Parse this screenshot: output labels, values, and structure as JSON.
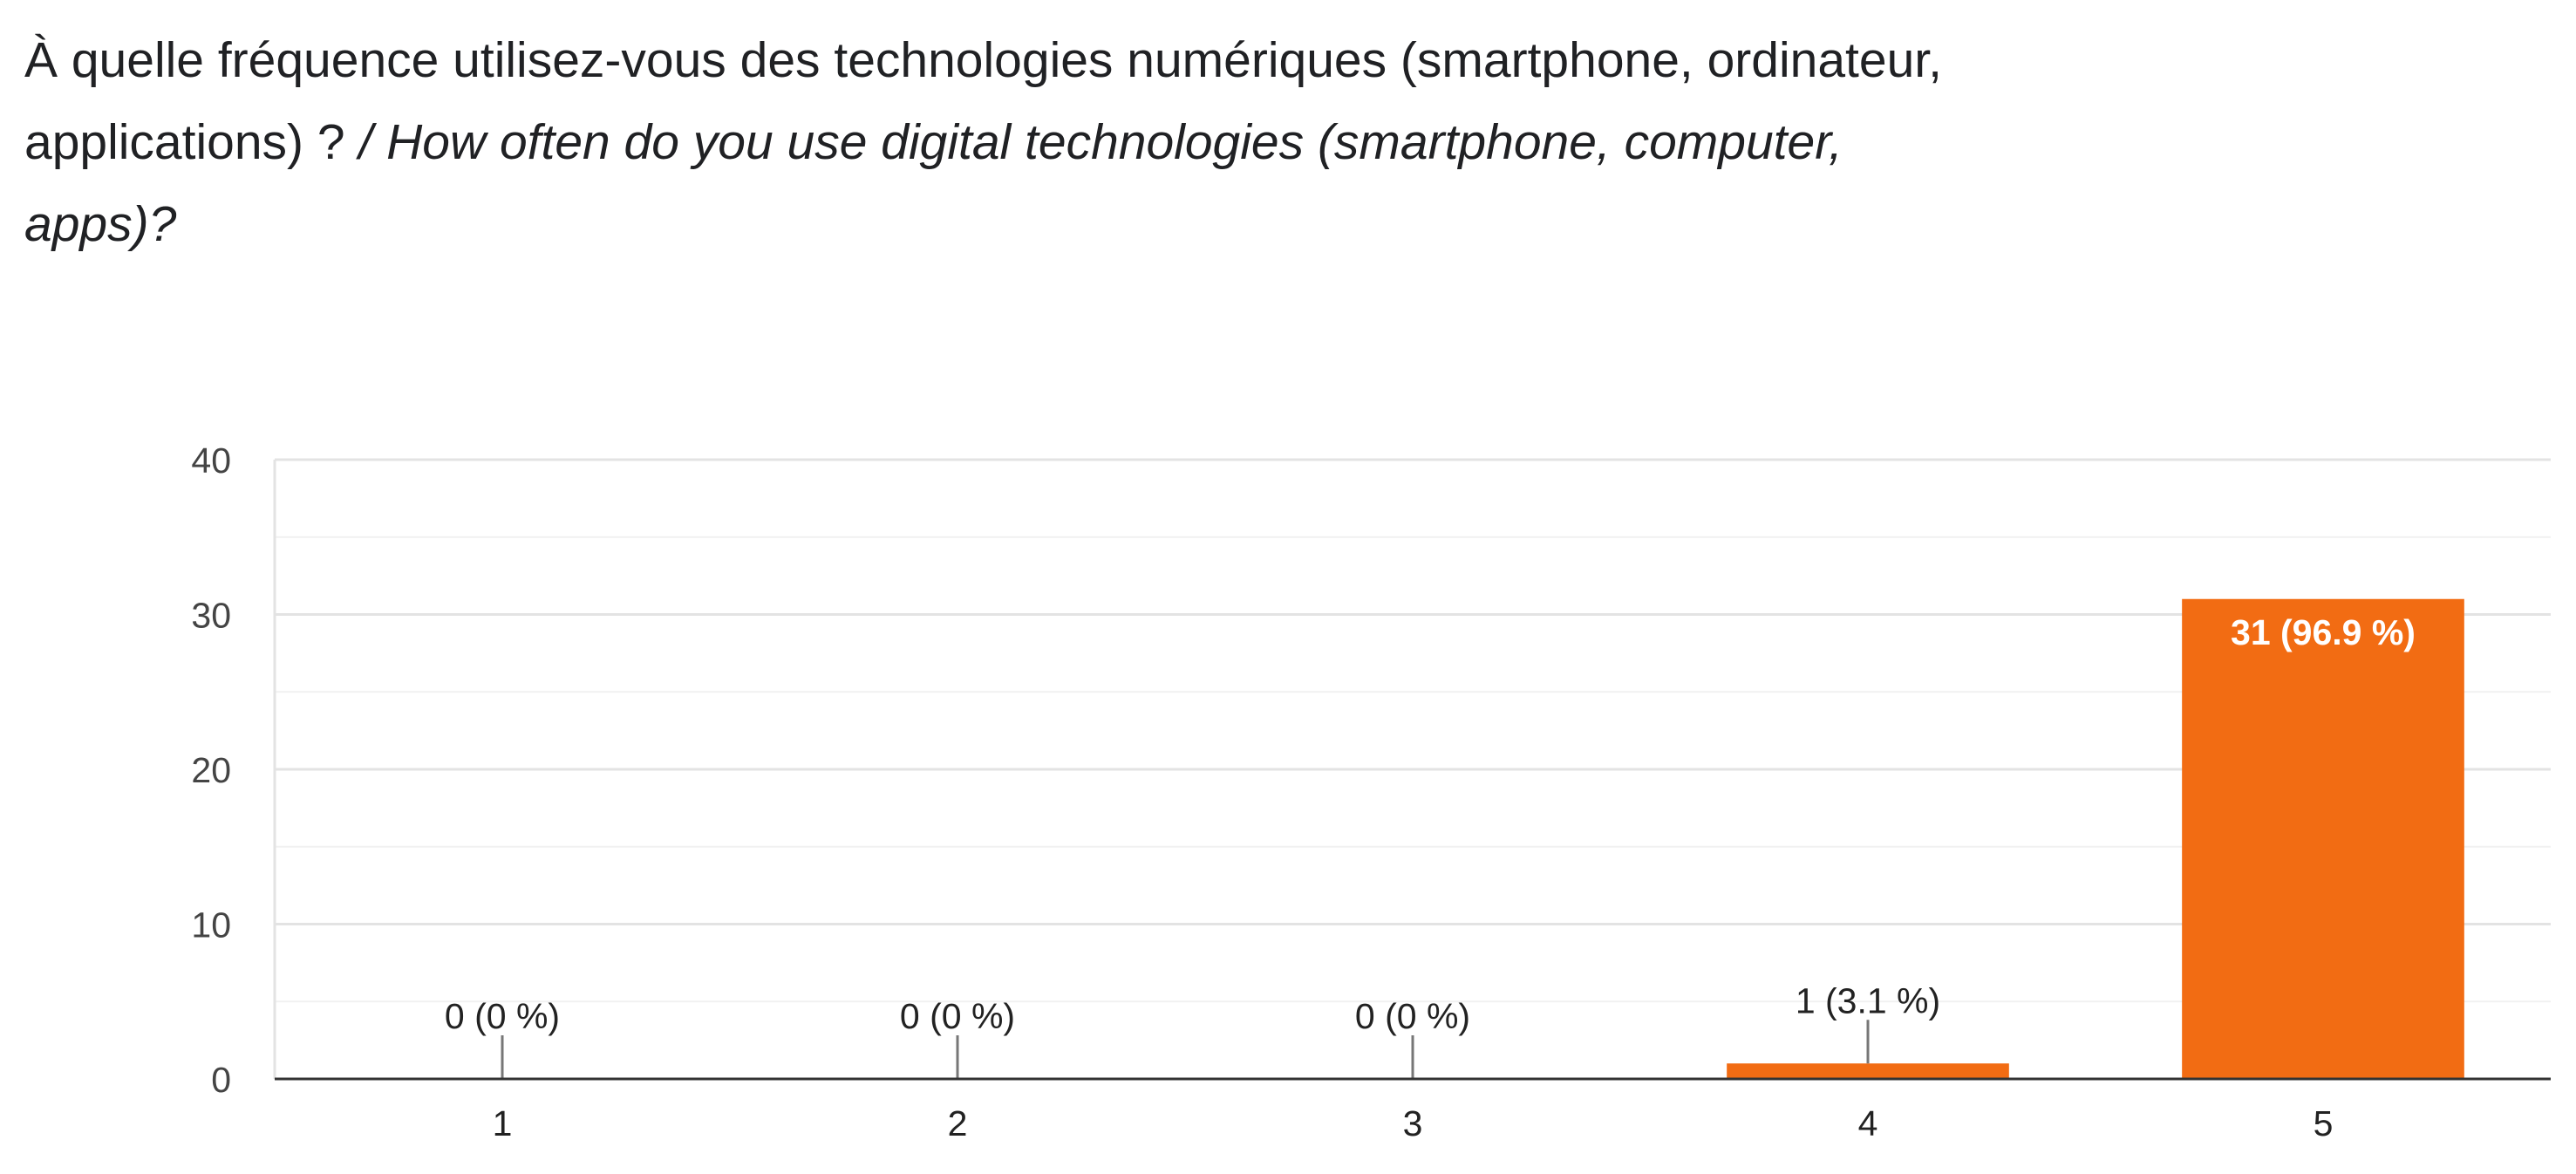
{
  "question": {
    "fr": "À quelle fréquence utilisez-vous des technologies numériques (smartphone, ordinateur, applications) ?",
    "en": "/ How often do you use digital technologies (smartphone, computer, apps)?"
  },
  "chart_data": {
    "type": "bar",
    "categories": [
      "1",
      "2",
      "3",
      "4",
      "5"
    ],
    "values": [
      0,
      0,
      0,
      1,
      31
    ],
    "data_labels": [
      "0 (0 %)",
      "0 (0 %)",
      "0 (0 %)",
      "1 (3.1 %)",
      "31 (96.9 %)"
    ],
    "y_ticks": [
      0,
      10,
      20,
      30,
      40
    ],
    "ylim": [
      0,
      40
    ],
    "grid": true,
    "bar_color": "#f26c13",
    "title": "",
    "xlabel": "",
    "ylabel": ""
  }
}
